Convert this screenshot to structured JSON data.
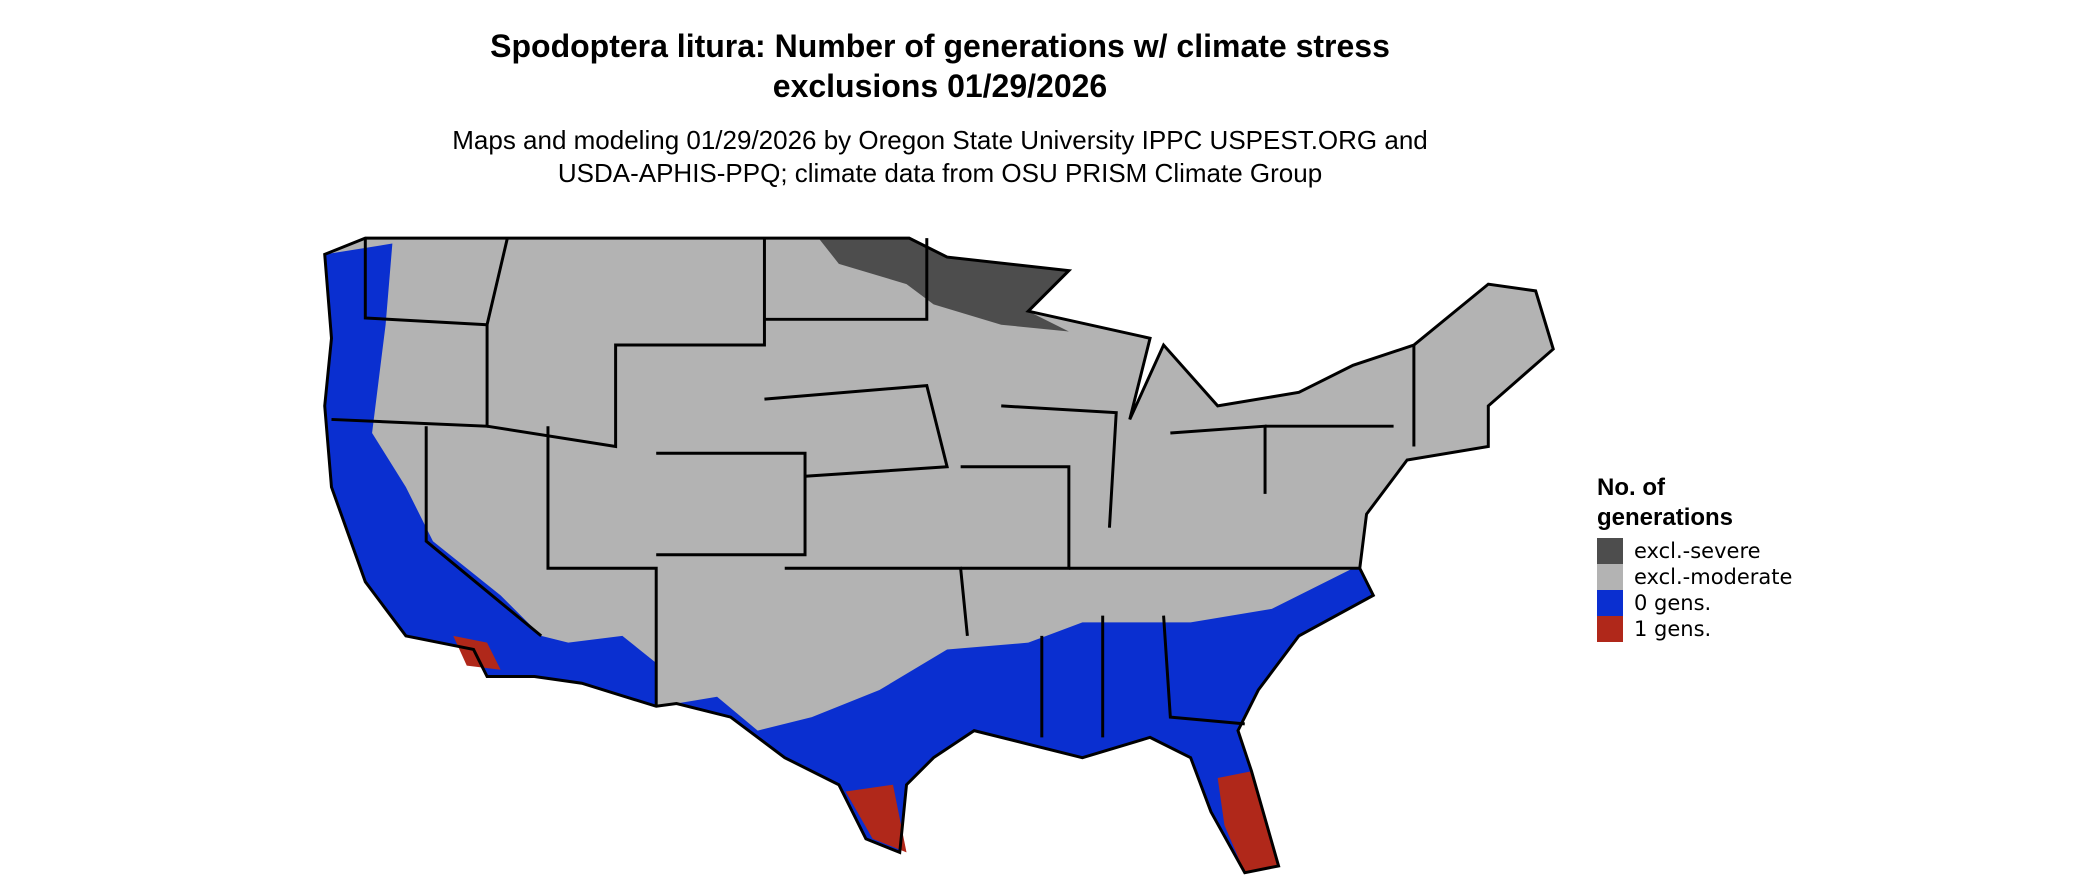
{
  "header": {
    "title_lines": [
      "Spodoptera litura: Number of generations w/ climate stress",
      "exclusions 01/29/2026"
    ],
    "subtitle_lines": [
      "Maps and modeling 01/29/2026 by Oregon State University IPPC USPEST.ORG and",
      "USDA-APHIS-PPQ; climate data from OSU PRISM Climate Group"
    ]
  },
  "legend": {
    "title_lines": [
      "No. of",
      "generations"
    ],
    "items": [
      {
        "label": "excl.-severe",
        "color": "#4d4d4d"
      },
      {
        "label": "excl.-moderate",
        "color": "#b3b3b3"
      },
      {
        "label": "0 gens.",
        "color": "#0a2fd0"
      },
      {
        "label": "1 gens.",
        "color": "#b0281a"
      }
    ]
  }
}
